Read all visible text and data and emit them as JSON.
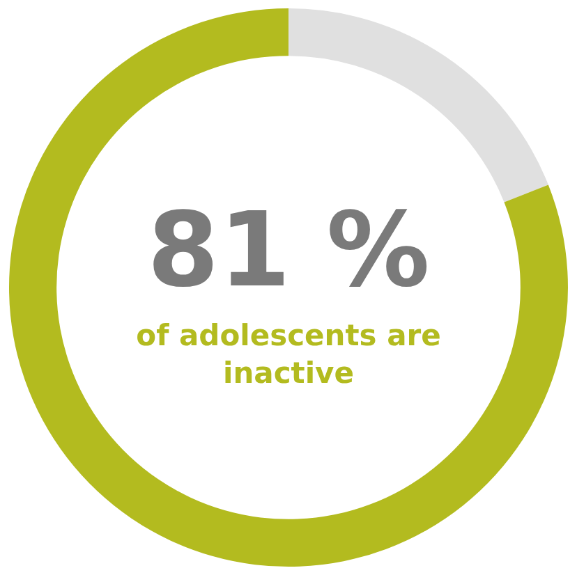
{
  "chart_data": {
    "type": "donut",
    "categories": [
      null,
      null
    ],
    "values": [
      19,
      81
    ],
    "colors": [
      "#e0e0e0",
      "#b3bb1f"
    ],
    "value_labels": [
      null,
      "81 %"
    ],
    "annotations": [
      "of adolescents are inactive"
    ],
    "legend": false
  }
}
